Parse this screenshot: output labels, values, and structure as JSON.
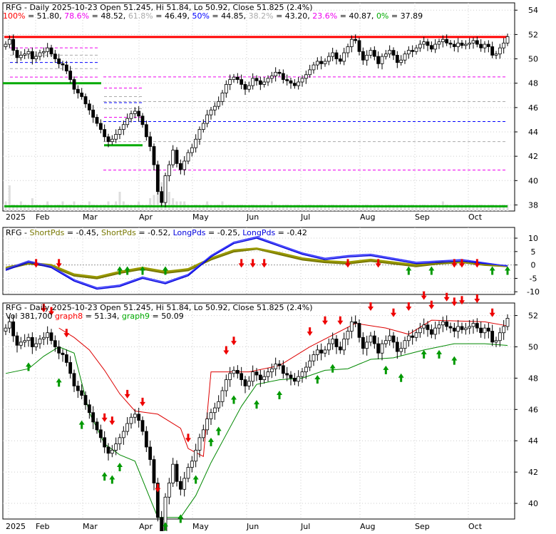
{
  "chart_data": [
    {
      "type": "candlestick",
      "panel": "price-fibonacci",
      "title": "RFG - Daily 2025-10-23 Open 51.245, Hi 51.84, Lo 50.92, Close 51.825 (2.4%)",
      "fib_levels": [
        {
          "label": "100%",
          "value": 51.8,
          "color": "#ff0000"
        },
        {
          "label": "78.6%",
          "value": 48.52,
          "color": "#ee00ee"
        },
        {
          "label": "61.8%",
          "value": 46.49,
          "color": "#aaaaaa"
        },
        {
          "label": "50%",
          "value": 44.85,
          "color": "#0000ff"
        },
        {
          "label": "38.2%",
          "value": 43.2,
          "color": "#aaaaaa"
        },
        {
          "label": "23.6%",
          "value": 40.87,
          "color": "#ee00ee"
        },
        {
          "label": "0%",
          "value": 37.89,
          "color": "#00aa00"
        }
      ],
      "fib_legend": [
        {
          "text": "100%",
          "color": "#ff0000"
        },
        {
          "text": " = 51.80, ",
          "color": "#000000"
        },
        {
          "text": "78.6%",
          "color": "#ee00ee"
        },
        {
          "text": " = 48.52, ",
          "color": "#000000"
        },
        {
          "text": "61.8%",
          "color": "#aaaaaa"
        },
        {
          "text": " = 46.49, ",
          "color": "#000000"
        },
        {
          "text": "50%",
          "color": "#0000ff"
        },
        {
          "text": " = 44.85, ",
          "color": "#000000"
        },
        {
          "text": "38.2%",
          "color": "#aaaaaa"
        },
        {
          "text": " = 43.20, ",
          "color": "#000000"
        },
        {
          "text": "23.6%",
          "color": "#ee00ee"
        },
        {
          "text": " = 40.87, ",
          "color": "#000000"
        },
        {
          "text": "0%",
          "color": "#00aa00"
        },
        {
          "text": " = 37.89",
          "color": "#000000"
        }
      ],
      "yticks": [
        38,
        40,
        42,
        44,
        46,
        48,
        50,
        52,
        54
      ],
      "ylim": [
        37.5,
        54.6
      ],
      "x_labels": [
        "2025",
        "Feb",
        "Mar",
        "Apr",
        "May",
        "Jun",
        "Jul",
        "Aug",
        "Sep",
        "Oct"
      ],
      "closes": [
        51.2,
        51.6,
        50.7,
        50.1,
        50.3,
        50.4,
        50.6,
        50.0,
        50.2,
        50.5,
        50.6,
        50.9,
        50.4,
        50.0,
        49.6,
        49.5,
        49.0,
        48.3,
        47.5,
        47.2,
        46.9,
        46.3,
        45.8,
        45.2,
        44.7,
        44.2,
        43.6,
        43.2,
        43.4,
        43.8,
        44.2,
        44.6,
        45.1,
        45.5,
        45.7,
        45.3,
        44.6,
        43.6,
        42.8,
        41.3,
        39.1,
        38.2,
        40.4,
        41.3,
        42.5,
        41.4,
        40.9,
        41.6,
        42.3,
        42.7,
        43.4,
        44.2,
        44.7,
        45.4,
        45.8,
        46.1,
        46.5,
        47.2,
        47.9,
        48.3,
        48.5,
        48.3,
        47.9,
        47.5,
        47.8,
        48.4,
        48.2,
        47.9,
        48.1,
        48.4,
        48.6,
        48.9,
        48.8,
        48.3,
        48.2,
        48.0,
        47.8,
        48.1,
        48.4,
        48.7,
        49.1,
        49.5,
        49.8,
        49.6,
        49.8,
        50.2,
        50.5,
        50.0,
        49.8,
        50.5,
        51.0,
        51.6,
        51.5,
        50.6,
        49.9,
        50.3,
        50.7,
        50.2,
        49.6,
        50.2,
        50.4,
        50.7,
        50.3,
        49.7,
        49.9,
        50.4,
        50.7,
        50.6,
        50.9,
        51.2,
        51.4,
        51.1,
        50.8,
        51.2,
        51.4,
        51.6,
        51.3,
        51.2,
        51.0,
        51.3,
        51.1,
        51.2,
        51.3,
        51.5,
        51.2,
        50.9,
        51.2,
        51.0,
        50.3,
        50.4,
        50.9,
        51.3,
        51.825
      ],
      "volumes": [
        0.3,
        0.8,
        0.2,
        0.2,
        0.3,
        0.2,
        0.2,
        0.4,
        0.2,
        0.2,
        0.2,
        0.3,
        0.2,
        0.2,
        0.2,
        0.3,
        0.2,
        0.2,
        0.3,
        0.2,
        0.2,
        0.2,
        0.3,
        0.2,
        0.2,
        0.2,
        0.2,
        0.3,
        0.2,
        0.3,
        0.6,
        0.3,
        0.2,
        0.2,
        0.2,
        0.3,
        0.2,
        0.2,
        0.4,
        0.5,
        1.0,
        0.9,
        0.5,
        0.6,
        0.4,
        0.3,
        0.3,
        0.3,
        0.2,
        0.2,
        0.2,
        0.2,
        0.2,
        0.3,
        0.2,
        0.2,
        0.2,
        0.3,
        0.2,
        0.2,
        0.2,
        0.2,
        0.2,
        0.2,
        0.2,
        0.2,
        0.2,
        0.2,
        0.2,
        0.2,
        0.3,
        0.2,
        0.2,
        0.2,
        0.2,
        0.2,
        0.2,
        0.2,
        0.2,
        0.2,
        0.2,
        0.2,
        0.2,
        0.2,
        0.2,
        0.2,
        0.2,
        0.2,
        0.2,
        0.2,
        0.2,
        0.2,
        0.2,
        0.2,
        0.2,
        0.2,
        0.2,
        0.2,
        0.2,
        0.2,
        0.2,
        0.2,
        0.2,
        0.2,
        0.2,
        0.2,
        0.2,
        0.2,
        0.2,
        0.2,
        0.2,
        0.2,
        0.2,
        0.2,
        0.2,
        0.3,
        0.2,
        0.2,
        0.2,
        0.2,
        0.2,
        0.2,
        0.2,
        0.2,
        0.2,
        0.2,
        0.2,
        0.2,
        0.2,
        0.2,
        0.2,
        0.2,
        0.2
      ]
    },
    {
      "type": "line",
      "panel": "short-long-pds",
      "legend": [
        {
          "text": "RFG - ",
          "color": "#000000"
        },
        {
          "text": "ShortPds",
          "color": "#777700"
        },
        {
          "text": " = -0.45, ",
          "color": "#000000"
        },
        {
          "text": "ShortPds",
          "color": "#777700"
        },
        {
          "text": " = -0.52, ",
          "color": "#000000"
        },
        {
          "text": "LongPds",
          "color": "#0000dd"
        },
        {
          "text": " = -0.25, ",
          "color": "#000000"
        },
        {
          "text": "LongPds",
          "color": "#0000dd"
        },
        {
          "text": " = -0.42",
          "color": "#000000"
        }
      ],
      "yticks": [
        -10,
        -5,
        0,
        5,
        10
      ],
      "ylim": [
        -11,
        14
      ],
      "series": [
        {
          "role": "short",
          "color": "#777700",
          "x": [
            0,
            6,
            12,
            18,
            24,
            30,
            36,
            42,
            48,
            54,
            60,
            66,
            72,
            78,
            84,
            90,
            96,
            102,
            108,
            114,
            120,
            126,
            132
          ],
          "values": [
            -1.5,
            0.5,
            -0.5,
            -4,
            -5,
            -3,
            -1.5,
            -3,
            -2,
            2,
            5,
            6,
            4,
            2,
            1,
            0.5,
            1.5,
            0.5,
            -0.5,
            0.5,
            1,
            0,
            -0.5
          ]
        },
        {
          "role": "short",
          "color": "#999900",
          "x": [
            0,
            6,
            12,
            18,
            24,
            30,
            36,
            42,
            48,
            54,
            60,
            66,
            72,
            78,
            84,
            90,
            96,
            102,
            108,
            114,
            120,
            126,
            132
          ],
          "values": [
            -1.0,
            0.8,
            0,
            -3.5,
            -4.5,
            -2.5,
            -1,
            -2.5,
            -1.5,
            2.5,
            5.5,
            6.2,
            4.5,
            2.5,
            1.5,
            1,
            2,
            1,
            0,
            1,
            1.2,
            0.3,
            -0.45
          ]
        },
        {
          "role": "long",
          "color": "#0000dd",
          "x": [
            0,
            6,
            12,
            18,
            24,
            30,
            36,
            42,
            48,
            54,
            60,
            66,
            72,
            78,
            84,
            90,
            96,
            102,
            108,
            114,
            120,
            126,
            132
          ],
          "values": [
            -2,
            1,
            -1,
            -6,
            -9,
            -8,
            -5,
            -7,
            -4,
            3,
            8,
            10,
            7,
            4,
            2,
            3,
            3.5,
            2,
            0.5,
            1,
            1.5,
            0.5,
            -0.25
          ]
        },
        {
          "role": "long",
          "color": "#3333ff",
          "x": [
            0,
            6,
            12,
            18,
            24,
            30,
            36,
            42,
            48,
            54,
            60,
            66,
            72,
            78,
            84,
            90,
            96,
            102,
            108,
            114,
            120,
            126,
            132
          ],
          "values": [
            -1.5,
            1.5,
            -0.5,
            -5.5,
            -8.5,
            -7.5,
            -4.5,
            -6.5,
            -3.5,
            3.5,
            8.5,
            10.5,
            7.5,
            4.5,
            2.5,
            3.5,
            4,
            2.5,
            1,
            1.5,
            2,
            0.8,
            -0.42
          ]
        }
      ],
      "up_arrows_x": [
        30,
        32,
        36,
        42,
        106,
        112,
        128,
        132
      ],
      "down_arrows_x": [
        8,
        14,
        62,
        65,
        68,
        90,
        98,
        118,
        120,
        124
      ]
    },
    {
      "type": "candlestick",
      "panel": "price-stops",
      "title": "RFG - Daily 2025-10-23 Open 51.245, Hi 51.84, Lo 50.92, Close 51.825 (2.4%)",
      "legend": [
        {
          "text": "Vol 381,700 ",
          "color": "#000000"
        },
        {
          "text": "graph8",
          "color": "#ff0000"
        },
        {
          "text": " = 51.34, ",
          "color": "#000000"
        },
        {
          "text": "graph9",
          "color": "#00aa00"
        },
        {
          "text": " = 50.09",
          "color": "#000000"
        }
      ],
      "yticks": [
        40,
        42,
        44,
        46,
        48,
        50,
        52
      ],
      "ylim": [
        39.0,
        52.8
      ],
      "stop_upper_color": "#dd0000",
      "stop_lower_color": "#008800",
      "upper_stop": [
        [
          14,
          51.2
        ],
        [
          18,
          50.6
        ],
        [
          22,
          49.8
        ],
        [
          26,
          48.5
        ],
        [
          30,
          47.0
        ],
        [
          34,
          45.9
        ],
        [
          40,
          45.7
        ],
        [
          46,
          44.8
        ],
        [
          48,
          43.5
        ],
        [
          52,
          43.0
        ],
        [
          54,
          48.4
        ],
        [
          64,
          48.4
        ],
        [
          72,
          48.8
        ],
        [
          80,
          50.0
        ],
        [
          92,
          51.5
        ],
        [
          100,
          51.2
        ],
        [
          106,
          50.8
        ],
        [
          112,
          51.7
        ],
        [
          126,
          51.6
        ],
        [
          132,
          51.34
        ]
      ],
      "lower_stop": [
        [
          0,
          48.3
        ],
        [
          6,
          48.6
        ],
        [
          10,
          49.4
        ],
        [
          14,
          50.0
        ],
        [
          18,
          49.6
        ],
        [
          22,
          45.8
        ],
        [
          26,
          43.8
        ],
        [
          30,
          43.1
        ],
        [
          34,
          42.7
        ],
        [
          40,
          39.1
        ],
        [
          46,
          39.1
        ],
        [
          50,
          40.5
        ],
        [
          54,
          42.6
        ],
        [
          58,
          44.4
        ],
        [
          62,
          46.2
        ],
        [
          66,
          47.6
        ],
        [
          72,
          47.9
        ],
        [
          78,
          48.0
        ],
        [
          84,
          48.5
        ],
        [
          90,
          48.6
        ],
        [
          96,
          49.2
        ],
        [
          102,
          49.3
        ],
        [
          110,
          49.8
        ],
        [
          118,
          50.2
        ],
        [
          126,
          50.2
        ],
        [
          132,
          50.09
        ]
      ],
      "up_arrows_x": [
        6,
        14,
        20,
        26,
        28,
        30,
        40,
        42,
        46,
        50,
        54,
        56,
        60,
        66,
        72,
        82,
        86,
        100,
        104,
        110,
        114,
        118
      ],
      "down_arrows_x": [
        10,
        12,
        16,
        26,
        28,
        32,
        36,
        40,
        48,
        58,
        60,
        80,
        84,
        88,
        96,
        102,
        106,
        110,
        112,
        116,
        118,
        120,
        124,
        128
      ]
    }
  ],
  "panel2_title_prefix": "RFG - ",
  "shared_month_labels": [
    "2025",
    "Feb",
    "Mar",
    "Apr",
    "May",
    "Jun",
    "Jul",
    "Aug",
    "Sep",
    "Oct"
  ]
}
